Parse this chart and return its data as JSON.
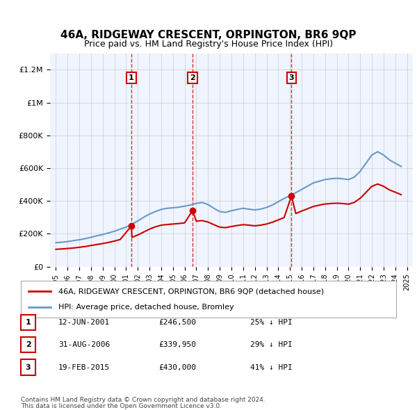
{
  "title": "46A, RIDGEWAY CRESCENT, ORPINGTON, BR6 9QP",
  "subtitle": "Price paid vs. HM Land Registry's House Price Index (HPI)",
  "legend_label_red": "46A, RIDGEWAY CRESCENT, ORPINGTON, BR6 9QP (detached house)",
  "legend_label_blue": "HPI: Average price, detached house, Bromley",
  "footer_line1": "Contains HM Land Registry data © Crown copyright and database right 2024.",
  "footer_line2": "This data is licensed under the Open Government Licence v3.0.",
  "sales": [
    {
      "label": "1",
      "date": "12-JUN-2001",
      "price": 246500,
      "pct": "25%",
      "x": 2001.45
    },
    {
      "label": "2",
      "date": "31-AUG-2006",
      "price": 339950,
      "pct": "29%",
      "x": 2006.67
    },
    {
      "label": "3",
      "date": "19-FEB-2015",
      "price": 430000,
      "pct": "41%",
      "x": 2015.13
    }
  ],
  "table_rows": [
    [
      "1",
      "12-JUN-2001",
      "£246,500",
      "25% ↓ HPI"
    ],
    [
      "2",
      "31-AUG-2006",
      "£339,950",
      "29% ↓ HPI"
    ],
    [
      "3",
      "19-FEB-2015",
      "£430,000",
      "41% ↓ HPI"
    ]
  ],
  "hpi_x": [
    1995,
    1995.5,
    1996,
    1996.5,
    1997,
    1997.5,
    1998,
    1998.5,
    1999,
    1999.5,
    2000,
    2000.5,
    2001,
    2001.5,
    2002,
    2002.5,
    2003,
    2003.5,
    2004,
    2004.5,
    2005,
    2005.5,
    2006,
    2006.5,
    2007,
    2007.5,
    2008,
    2008.5,
    2009,
    2009.5,
    2010,
    2010.5,
    2011,
    2011.5,
    2012,
    2012.5,
    2013,
    2013.5,
    2014,
    2014.5,
    2015,
    2015.5,
    2016,
    2016.5,
    2017,
    2017.5,
    2018,
    2018.5,
    2019,
    2019.5,
    2020,
    2020.5,
    2021,
    2021.5,
    2022,
    2022.5,
    2023,
    2023.5,
    2024,
    2024.5
  ],
  "hpi_y": [
    145000,
    148000,
    152000,
    158000,
    163000,
    170000,
    178000,
    187000,
    195000,
    205000,
    215000,
    228000,
    240000,
    258000,
    278000,
    300000,
    320000,
    335000,
    348000,
    355000,
    358000,
    362000,
    368000,
    375000,
    385000,
    390000,
    378000,
    355000,
    335000,
    330000,
    340000,
    348000,
    355000,
    350000,
    345000,
    350000,
    360000,
    375000,
    395000,
    415000,
    432000,
    450000,
    470000,
    490000,
    510000,
    520000,
    530000,
    535000,
    538000,
    535000,
    530000,
    545000,
    580000,
    630000,
    680000,
    700000,
    680000,
    650000,
    630000,
    610000
  ],
  "red_x": [
    1995,
    1995.5,
    1996,
    1996.5,
    1997,
    1997.5,
    1998,
    1998.5,
    1999,
    1999.5,
    2000,
    2000.5,
    2001.45,
    2001.45,
    2001.5,
    2002,
    2002.5,
    2003,
    2003.5,
    2004,
    2004.5,
    2005,
    2005.5,
    2006,
    2006.67,
    2006.67,
    2007,
    2007.5,
    2008,
    2008.5,
    2009,
    2009.5,
    2010,
    2010.5,
    2011,
    2011.5,
    2012,
    2012.5,
    2013,
    2013.5,
    2014,
    2014.5,
    2015.13,
    2015.13,
    2015.5,
    2016,
    2016.5,
    2017,
    2017.5,
    2018,
    2018.5,
    2019,
    2019.5,
    2020,
    2020.5,
    2021,
    2021.5,
    2022,
    2022.5,
    2023,
    2023.5,
    2024,
    2024.5
  ],
  "red_y": [
    105000,
    107000,
    110000,
    113000,
    117000,
    122000,
    128000,
    134000,
    140000,
    147000,
    155000,
    165000,
    246500,
    246500,
    178000,
    192000,
    210000,
    228000,
    242000,
    252000,
    256000,
    259000,
    262000,
    266000,
    339950,
    339950,
    276000,
    280000,
    271000,
    255000,
    240000,
    237000,
    244000,
    250000,
    255000,
    252000,
    248000,
    252000,
    259000,
    270000,
    284000,
    298000,
    430000,
    430000,
    323000,
    338000,
    352000,
    366000,
    374000,
    381000,
    384000,
    386000,
    384000,
    380000,
    391000,
    416000,
    452000,
    489000,
    503000,
    489000,
    467000,
    453000,
    438000
  ],
  "ylim": [
    0,
    1300000
  ],
  "xlim": [
    1994.5,
    2025.5
  ],
  "yticks": [
    0,
    200000,
    400000,
    600000,
    800000,
    1000000,
    1200000
  ],
  "ytick_labels": [
    "£0",
    "£200K",
    "£400K",
    "£600K",
    "£800K",
    "£1M",
    "£1.2M"
  ],
  "xticks": [
    1995,
    1996,
    1997,
    1998,
    1999,
    2000,
    2001,
    2002,
    2003,
    2004,
    2005,
    2006,
    2007,
    2008,
    2009,
    2010,
    2011,
    2012,
    2013,
    2014,
    2015,
    2016,
    2017,
    2018,
    2019,
    2020,
    2021,
    2022,
    2023,
    2024,
    2025
  ],
  "bg_color": "#f0f4ff",
  "grid_color": "#cccccc",
  "red_color": "#cc0000",
  "blue_color": "#6699cc",
  "dashed_color": "#cc0000"
}
